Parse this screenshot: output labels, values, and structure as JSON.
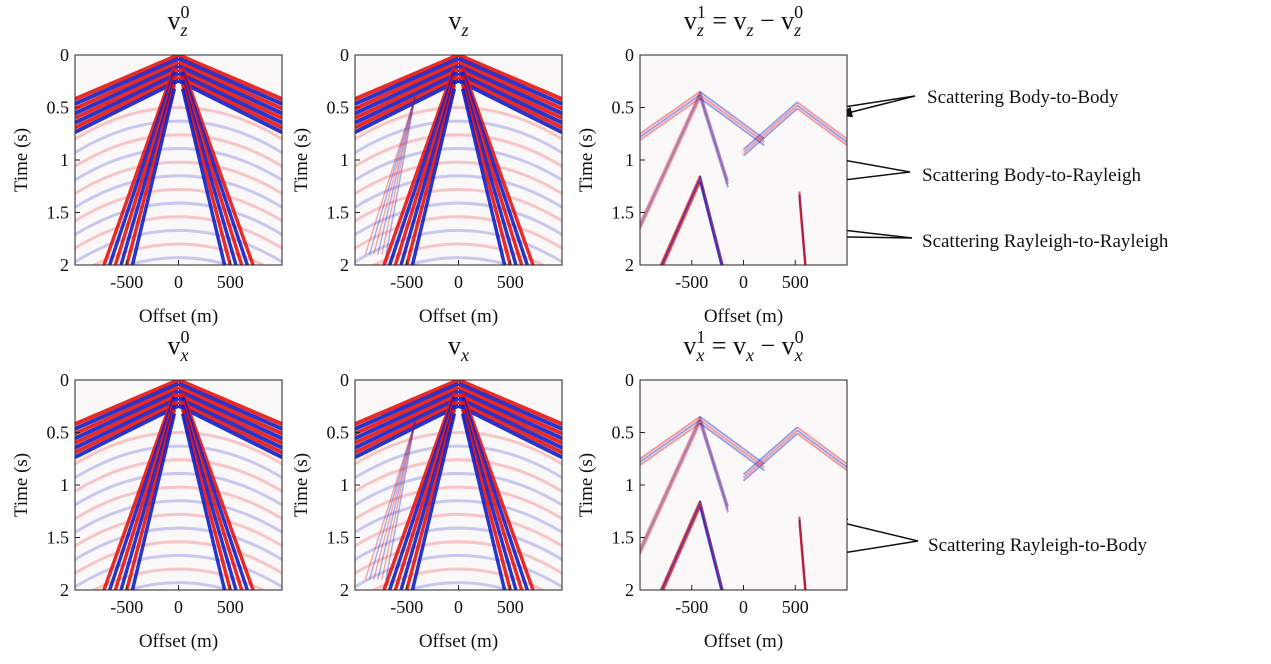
{
  "chart_data": [
    {
      "type": "image",
      "title": [
        {
          "text": "v",
          "sub": "z",
          "sup": "0"
        }
      ],
      "xlabel": "Offset (m)",
      "ylabel": "Time (s)",
      "xlim": [
        -1000,
        1000
      ],
      "xticks": [
        -500,
        0,
        500
      ],
      "ylim": [
        0,
        2
      ],
      "yticks": [
        0,
        0.5,
        1,
        1.5,
        2
      ],
      "y_reversed": true
    },
    {
      "type": "image",
      "title": [
        {
          "text": "v",
          "sub": "z"
        }
      ],
      "xlabel": "Offset (m)",
      "ylabel": "Time (s)",
      "xlim": [
        -1000,
        1000
      ],
      "xticks": [
        -500,
        0,
        500
      ],
      "ylim": [
        0,
        2
      ],
      "yticks": [
        0,
        0.5,
        1,
        1.5,
        2
      ],
      "y_reversed": true
    },
    {
      "type": "image",
      "title": [
        {
          "text": "v",
          "sub": "z",
          "sup": "1"
        },
        {
          "text": " = v",
          "sub": "z"
        },
        {
          "text": " − v",
          "sub": "z",
          "sup": "0"
        }
      ],
      "xlabel": "Offset (m)",
      "ylabel": "Time (s)",
      "xlim": [
        -1000,
        1000
      ],
      "xticks": [
        -500,
        0,
        500
      ],
      "ylim": [
        0,
        2
      ],
      "yticks": [
        0,
        0.5,
        1,
        1.5,
        2
      ],
      "y_reversed": true
    },
    {
      "type": "image",
      "title": [
        {
          "text": "v",
          "sub": "x",
          "sup": "0"
        }
      ],
      "xlabel": "Offset (m)",
      "ylabel": "Time (s)",
      "xlim": [
        -1000,
        1000
      ],
      "xticks": [
        -500,
        0,
        500
      ],
      "ylim": [
        0,
        2
      ],
      "yticks": [
        0,
        0.5,
        1,
        1.5,
        2
      ],
      "y_reversed": true
    },
    {
      "type": "image",
      "title": [
        {
          "text": "v",
          "sub": "x"
        }
      ],
      "xlabel": "Offset (m)",
      "ylabel": "Time (s)",
      "xlim": [
        -1000,
        1000
      ],
      "xticks": [
        -500,
        0,
        500
      ],
      "ylim": [
        0,
        2
      ],
      "yticks": [
        0,
        0.5,
        1,
        1.5,
        2
      ],
      "y_reversed": true
    },
    {
      "type": "image",
      "title": [
        {
          "text": "v",
          "sub": "x",
          "sup": "1"
        },
        {
          "text": " = v",
          "sub": "x"
        },
        {
          "text": " − v",
          "sub": "x",
          "sup": "0"
        }
      ],
      "xlabel": "Offset (m)",
      "ylabel": "Time (s)",
      "xlim": [
        -1000,
        1000
      ],
      "xticks": [
        -500,
        0,
        500
      ],
      "ylim": [
        0,
        2
      ],
      "yticks": [
        0,
        0.5,
        1,
        1.5,
        2
      ],
      "y_reversed": true
    }
  ],
  "annotations": [
    "Scattering Body-to-Body",
    "Scattering Body-to-Rayleigh",
    "Scattering Rayleigh-to-Rayleigh",
    "Scattering Rayleigh-to-Body"
  ]
}
